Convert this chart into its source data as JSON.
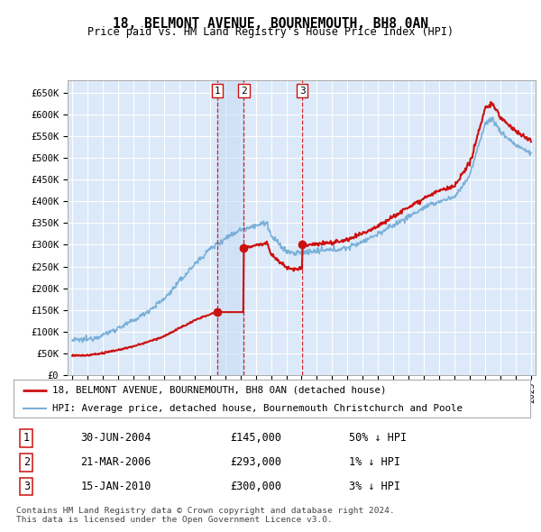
{
  "title": "18, BELMONT AVENUE, BOURNEMOUTH, BH8 0AN",
  "subtitle": "Price paid vs. HM Land Registry's House Price Index (HPI)",
  "background_color": "#dce9f8",
  "grid_color": "#ffffff",
  "ylim": [
    0,
    680000
  ],
  "yticks": [
    0,
    50000,
    100000,
    150000,
    200000,
    250000,
    300000,
    350000,
    400000,
    450000,
    500000,
    550000,
    600000,
    650000
  ],
  "ytick_labels": [
    "£0",
    "£50K",
    "£100K",
    "£150K",
    "£200K",
    "£250K",
    "£300K",
    "£350K",
    "£400K",
    "£450K",
    "£500K",
    "£550K",
    "£600K",
    "£650K"
  ],
  "xlim": [
    1994.7,
    2025.3
  ],
  "sales": [
    {
      "date_num": 2004.5,
      "price": 145000,
      "label": "1",
      "date_str": "30-JUN-2004",
      "price_str": "£145,000",
      "pct": "50% ↓ HPI"
    },
    {
      "date_num": 2006.22,
      "price": 293000,
      "label": "2",
      "date_str": "21-MAR-2006",
      "price_str": "£293,000",
      "pct": "1% ↓ HPI"
    },
    {
      "date_num": 2010.04,
      "price": 300000,
      "label": "3",
      "date_str": "15-JAN-2010",
      "price_str": "£300,000",
      "pct": "3% ↓ HPI"
    }
  ],
  "sale_shade_pairs": [
    [
      2004.5,
      2006.22
    ]
  ],
  "legend_line1": "18, BELMONT AVENUE, BOURNEMOUTH, BH8 0AN (detached house)",
  "legend_line2": "HPI: Average price, detached house, Bournemouth Christchurch and Poole",
  "footer": "Contains HM Land Registry data © Crown copyright and database right 2024.\nThis data is licensed under the Open Government Licence v3.0.",
  "table_rows": [
    [
      "1",
      "30-JUN-2004",
      "£145,000",
      "50% ↓ HPI"
    ],
    [
      "2",
      "21-MAR-2006",
      "£293,000",
      "1% ↓ HPI"
    ],
    [
      "3",
      "15-JAN-2010",
      "£300,000",
      "3% ↓ HPI"
    ]
  ]
}
